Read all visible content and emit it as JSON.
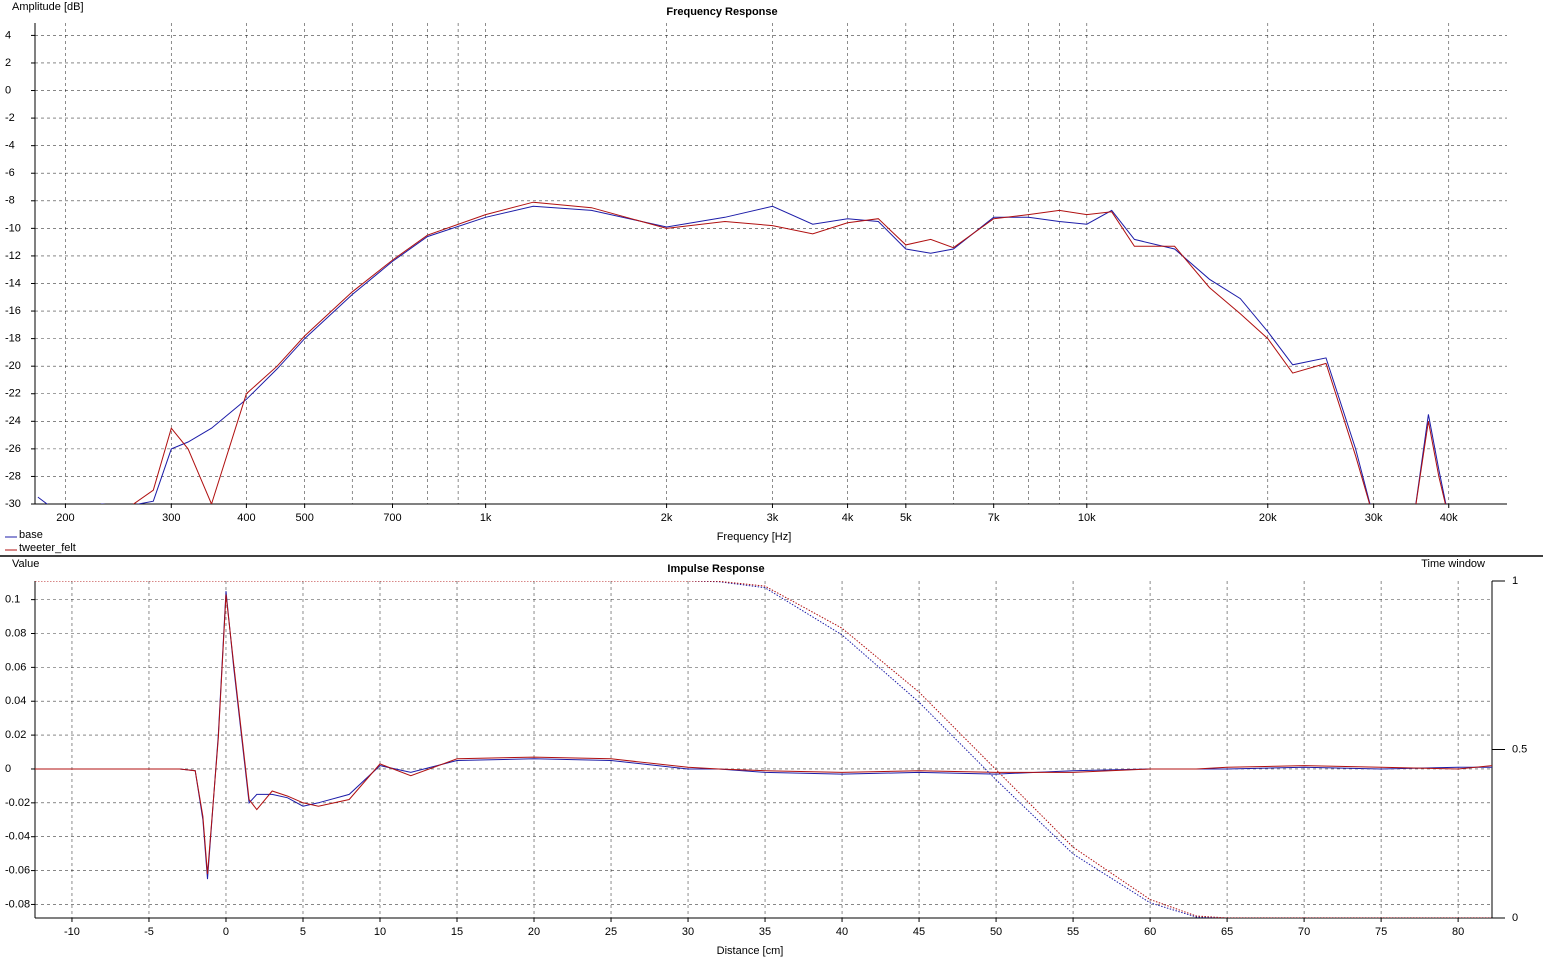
{
  "chart_data": [
    {
      "type": "line",
      "title": "Frequency Response",
      "x_label": "Frequency [Hz]",
      "y_label": "Amplitude [dB]",
      "xscale": "log",
      "xlim": [
        178,
        50000
      ],
      "ylim": [
        -30,
        4.9
      ],
      "grid": true,
      "legend": "bottom-left",
      "xticks": [
        200,
        300,
        400,
        500,
        700,
        {
          "value": 1000,
          "label": "1k"
        },
        {
          "value": 2000,
          "label": "2k"
        },
        {
          "value": 3000,
          "label": "3k"
        },
        {
          "value": 4000,
          "label": "4k"
        },
        {
          "value": 5000,
          "label": "5k"
        },
        {
          "value": 7000,
          "label": "7k"
        },
        {
          "value": 10000,
          "label": "10k"
        },
        {
          "value": 20000,
          "label": "20k"
        },
        {
          "value": 30000,
          "label": "30k"
        },
        {
          "value": 40000,
          "label": "40k"
        }
      ],
      "xminor": [
        600,
        800,
        900,
        6000,
        8000,
        9000
      ],
      "yticks": [
        4,
        2,
        0,
        -2,
        -4,
        -6,
        -8,
        -10,
        -12,
        -14,
        -16,
        -18,
        -20,
        -22,
        -24,
        -26,
        -28,
        -30
      ],
      "x": [
        180,
        200,
        230,
        250,
        280,
        300,
        320,
        350,
        400,
        450,
        500,
        600,
        700,
        800,
        1000,
        1200,
        1500,
        2000,
        2500,
        3000,
        3500,
        4000,
        4500,
        5000,
        5500,
        6000,
        7000,
        8000,
        9000,
        10000,
        11000,
        12000,
        14000,
        16000,
        18000,
        20000,
        22000,
        25000,
        28000,
        30000,
        35000,
        37000,
        38500,
        40000
      ],
      "series": [
        {
          "name": "base",
          "color": "#1c1ca8",
          "values": [
            -29.5,
            -31,
            -30,
            -30.2,
            -29.8,
            -26,
            -25.5,
            -24.5,
            -22.4,
            -20.2,
            -18,
            -14.8,
            -12.4,
            -10.6,
            -9.2,
            -8.4,
            -8.7,
            -9.9,
            -9.2,
            -8.4,
            -9.7,
            -9.3,
            -9.5,
            -11.5,
            -11.8,
            -11.5,
            -9.2,
            -9.2,
            -9.5,
            -9.7,
            -8.7,
            -10.8,
            -11.5,
            -13.7,
            -15.1,
            -17.5,
            -19.9,
            -19.4,
            -26,
            -31,
            -31,
            -23.5,
            -27.5,
            -31
          ]
        },
        {
          "name": "tweeter_felt",
          "color": "#b01010",
          "values": [
            -31,
            -31,
            -30.5,
            -30.5,
            -29,
            -24.5,
            -26,
            -30,
            -22,
            -20,
            -17.8,
            -14.6,
            -12.3,
            -10.5,
            -9,
            -8.1,
            -8.5,
            -10,
            -9.5,
            -9.8,
            -10.4,
            -9.6,
            -9.3,
            -11.2,
            -10.8,
            -11.4,
            -9.3,
            -9,
            -8.7,
            -9,
            -8.8,
            -11.3,
            -11.3,
            -14.3,
            -16.2,
            -18,
            -20.5,
            -19.8,
            -26.5,
            -31,
            -31,
            -24,
            -28,
            -31
          ]
        }
      ]
    },
    {
      "type": "line",
      "title": "Impulse Response",
      "x_label": "Distance [cm]",
      "y_label": "Value",
      "y2_label": "Time window",
      "xlim": [
        -12.4,
        82.2
      ],
      "ylim": [
        -0.088,
        0.111
      ],
      "y2lim": [
        0,
        1
      ],
      "grid": true,
      "xticks": [
        -10,
        -5,
        0,
        5,
        10,
        15,
        20,
        25,
        30,
        35,
        40,
        45,
        50,
        55,
        60,
        65,
        70,
        75,
        80
      ],
      "yticks": [
        0.1,
        0.08,
        0.06,
        0.04,
        0.02,
        0,
        -0.02,
        -0.04,
        -0.06,
        -0.08
      ],
      "y2ticks": [
        1,
        0.5,
        0
      ],
      "x": [
        -12.4,
        -3,
        -2,
        -1.5,
        -1.2,
        -0.5,
        0,
        0.5,
        1,
        1.5,
        2,
        3,
        4,
        5,
        6,
        8,
        10,
        12,
        15,
        20,
        25,
        30,
        32,
        35,
        40,
        45,
        50,
        55,
        60,
        63,
        65,
        70,
        75,
        80,
        82.2
      ],
      "series": [
        {
          "name": "base",
          "color": "#1c1ca8",
          "values": [
            0,
            0,
            -0.001,
            -0.03,
            -0.065,
            0.02,
            0.105,
            0.06,
            0.02,
            -0.02,
            -0.015,
            -0.015,
            -0.017,
            -0.022,
            -0.02,
            -0.015,
            0.002,
            -0.002,
            0.005,
            0.006,
            0.005,
            0,
            0,
            -0.002,
            -0.003,
            -0.002,
            -0.003,
            -0.001,
            0,
            0,
            0,
            0.001,
            0,
            0.001,
            0.001
          ]
        },
        {
          "name": "tweeter_felt",
          "color": "#b01010",
          "values": [
            0,
            0,
            -0.001,
            -0.028,
            -0.062,
            0.018,
            0.103,
            0.062,
            0.022,
            -0.018,
            -0.024,
            -0.013,
            -0.016,
            -0.02,
            -0.022,
            -0.018,
            0.003,
            -0.004,
            0.006,
            0.007,
            0.006,
            0.001,
            0,
            -0.001,
            -0.002,
            -0.001,
            -0.002,
            -0.002,
            0,
            0,
            0.001,
            0.002,
            0.001,
            0,
            0.002
          ]
        },
        {
          "color": "#1c1ca8",
          "axis": "y2",
          "style": "dotted",
          "values": [
            1,
            1,
            1,
            1,
            1,
            1,
            1,
            1,
            1,
            1,
            1,
            1,
            1,
            1,
            1,
            1,
            1,
            1,
            1,
            1,
            1,
            1,
            0.998,
            0.98,
            0.84,
            0.64,
            0.41,
            0.19,
            0.045,
            0.003,
            0,
            0,
            0,
            0,
            0
          ]
        },
        {
          "color": "#b01010",
          "axis": "y2",
          "style": "dotted",
          "values": [
            1,
            1,
            1,
            1,
            1,
            1,
            1,
            1,
            1,
            1,
            1,
            1,
            1,
            1,
            1,
            1,
            1,
            1,
            1,
            1,
            1,
            1,
            0.999,
            0.985,
            0.86,
            0.67,
            0.44,
            0.21,
            0.055,
            0.006,
            0,
            0,
            0,
            0,
            0
          ]
        }
      ]
    }
  ]
}
